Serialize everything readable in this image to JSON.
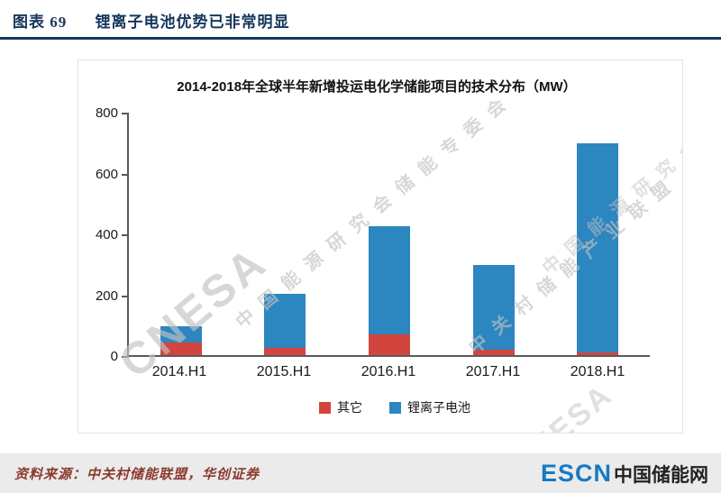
{
  "header": {
    "figure_label": "图表  69",
    "title": "锂离子电池优势已非常明显"
  },
  "chart": {
    "title": "2014-2018年全球半年新增投运电化学储能项目的技术分布（MW）"
  },
  "chart_data": {
    "type": "bar",
    "stacked": true,
    "title": "2014-2018年全球半年新增投运电化学储能项目的技术分布（MW）",
    "categories": [
      "2014.H1",
      "2015.H1",
      "2016.H1",
      "2017.H1",
      "2018.H1"
    ],
    "series": [
      {
        "name": "其它",
        "color": "#D2453E",
        "values": [
          42,
          25,
          68,
          18,
          8
        ]
      },
      {
        "name": "锂离子电池",
        "color": "#2C86C0",
        "values": [
          52,
          177,
          355,
          278,
          688
        ]
      }
    ],
    "ylim": [
      0,
      800
    ],
    "yticks": [
      0,
      200,
      400,
      600,
      800
    ],
    "ylabel": "",
    "xlabel": "",
    "grid": false,
    "legend_position": "bottom"
  },
  "watermark": {
    "logo": "CNESA",
    "line1": "中国能源研究会储能专委会",
    "line2": "中关村储能产业联盟"
  },
  "footer": {
    "source": "资料来源：中关村储能联盟，华创证券",
    "logo_escn": "ESCN",
    "logo_cn": "中国储能网"
  }
}
